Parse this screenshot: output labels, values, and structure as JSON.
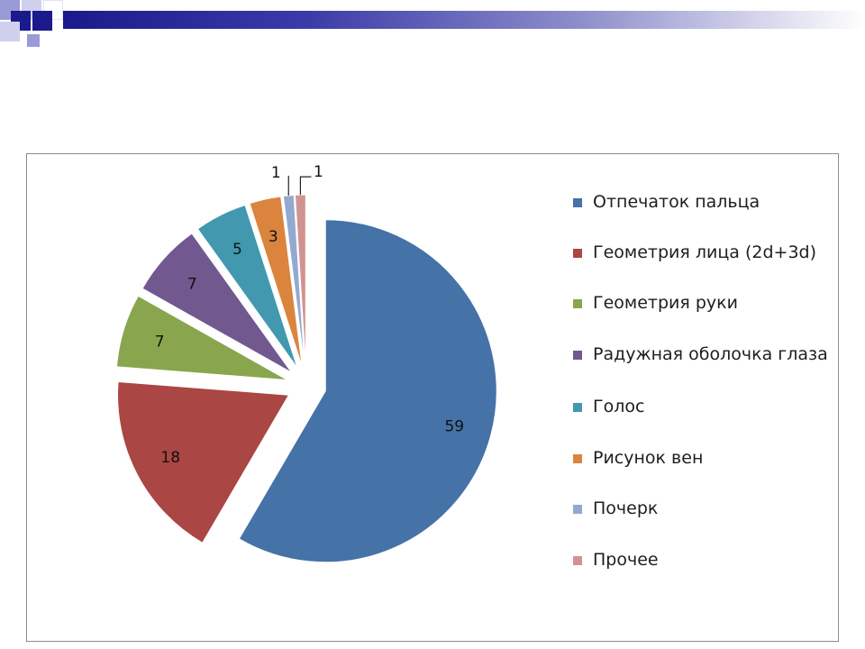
{
  "chart_data": {
    "type": "pie",
    "categories": [
      "Отпечаток пальца",
      "Геометрия лица (2d+3d)",
      "Геометрия руки",
      "Радужная оболочка глаза",
      "Голос",
      "Рисунок вен",
      "Почерк",
      "Прочее"
    ],
    "values": [
      59,
      18,
      7,
      7,
      5,
      3,
      1,
      1
    ],
    "data_labels": [
      "59",
      "18",
      "7",
      "7",
      "5",
      "3",
      "1",
      "1"
    ],
    "colors": [
      "#4572a7",
      "#aa4643",
      "#89a54e",
      "#71588f",
      "#4198af",
      "#db843d",
      "#93a9cf",
      "#d19392"
    ],
    "exploded": true,
    "legend_position": "right"
  }
}
